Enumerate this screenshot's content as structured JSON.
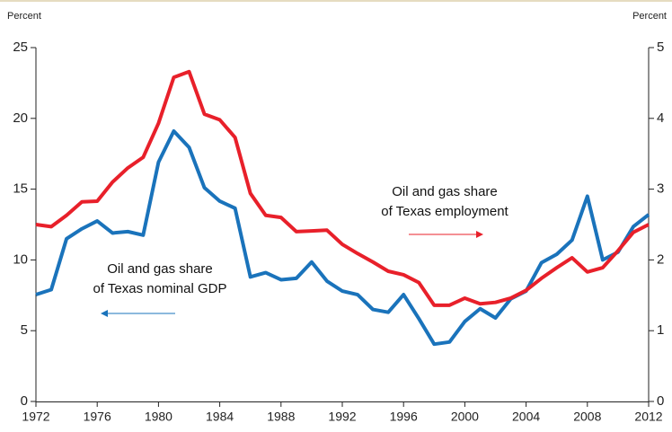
{
  "chart_data": {
    "type": "line",
    "y_axis_label": "Percent",
    "y2_axis_label": "Percent",
    "x": [
      1972,
      1973,
      1974,
      1975,
      1976,
      1977,
      1978,
      1979,
      1980,
      1981,
      1982,
      1983,
      1984,
      1985,
      1986,
      1987,
      1988,
      1989,
      1990,
      1991,
      1992,
      1993,
      1994,
      1995,
      1996,
      1997,
      1998,
      1999,
      2000,
      2001,
      2002,
      2003,
      2004,
      2005,
      2006,
      2007,
      2008,
      2009,
      2010,
      2011,
      2012
    ],
    "series": [
      {
        "color": "#1a73bb",
        "axis": "y",
        "values": [
          7.55,
          7.9,
          11.5,
          12.2,
          12.75,
          11.9,
          12.0,
          11.75,
          16.9,
          19.1,
          17.95,
          15.1,
          14.15,
          13.65,
          8.8,
          9.1,
          8.6,
          8.7,
          9.85,
          8.5,
          7.8,
          7.55,
          6.5,
          6.3,
          7.55,
          5.85,
          4.05,
          4.2,
          5.65,
          6.55,
          5.9,
          7.25,
          7.8,
          9.8,
          10.4,
          11.4,
          14.5,
          10.0,
          10.55,
          12.35,
          13.2
        ]
      },
      {
        "color": "#e8202a",
        "axis": "y2",
        "values": [
          2.5,
          2.47,
          2.63,
          2.82,
          2.83,
          3.1,
          3.3,
          3.45,
          3.93,
          4.58,
          4.66,
          4.06,
          3.98,
          3.73,
          2.94,
          2.63,
          2.6,
          2.4,
          2.41,
          2.42,
          2.22,
          2.09,
          1.97,
          1.84,
          1.79,
          1.68,
          1.36,
          1.36,
          1.46,
          1.38,
          1.4,
          1.46,
          1.57,
          1.74,
          1.89,
          2.03,
          1.83,
          1.89,
          2.13,
          2.39,
          2.5
        ]
      }
    ],
    "xlim": [
      1972,
      2012
    ],
    "xticks": [
      1972,
      1976,
      1980,
      1984,
      1988,
      1992,
      1996,
      2000,
      2004,
      2008,
      2012
    ],
    "ylim": [
      0,
      25
    ],
    "yticks": [
      0,
      5,
      10,
      15,
      20,
      25
    ],
    "y2lim": [
      0,
      5
    ],
    "y2ticks": [
      0,
      1,
      2,
      3,
      4,
      5
    ],
    "annotations": [
      {
        "lines": [
          "Oil and gas share",
          "of Texas nominal GDP"
        ],
        "color": "#1a73bb"
      },
      {
        "lines": [
          "Oil and gas share",
          "of Texas employment"
        ],
        "color": "#e8202a"
      }
    ]
  }
}
